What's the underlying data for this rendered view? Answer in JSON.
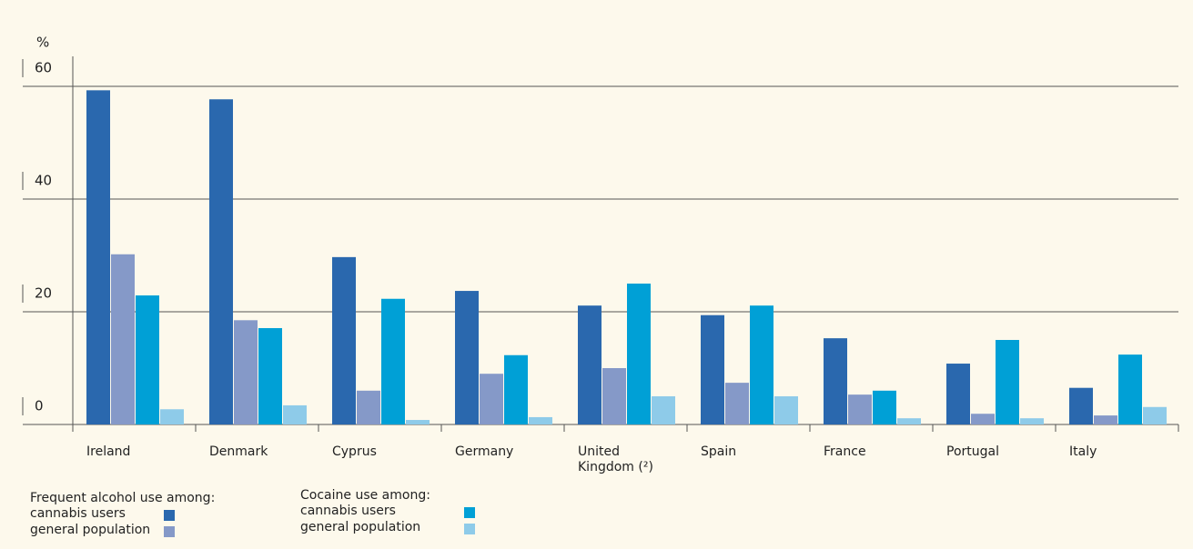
{
  "chart_data": {
    "type": "bar",
    "y_label": "%",
    "categories": [
      "Ireland",
      "Denmark",
      "Cyprus",
      "Germany",
      "United Kingdom (²)",
      "Spain",
      "France",
      "Portugal",
      "Italy"
    ],
    "legend_titles": [
      "Frequent alcohol use among:",
      "Cocaine use among:"
    ],
    "series": [
      {
        "name": "cannabis users",
        "color": "#2a68ae",
        "values": [
          59.3,
          57.7,
          29.7,
          23.7,
          21.1,
          19.4,
          15.3,
          10.8,
          6.5
        ]
      },
      {
        "name": "general population",
        "color": "#8599c8",
        "values": [
          30.2,
          18.5,
          6.0,
          9.0,
          10.0,
          7.4,
          5.3,
          1.9,
          1.6
        ]
      },
      {
        "name": "cannabis users",
        "color": "#00a0d6",
        "values": [
          22.9,
          17.1,
          22.3,
          12.3,
          25.0,
          21.1,
          6.0,
          15.0,
          12.4
        ]
      },
      {
        "name": "general population",
        "color": "#8ecbe9",
        "values": [
          2.7,
          3.4,
          0.8,
          1.3,
          5.0,
          5.0,
          1.1,
          1.1,
          3.1
        ]
      }
    ],
    "ylim": [
      0,
      60
    ],
    "yticks": [
      0,
      20,
      40,
      60
    ],
    "grid": true
  }
}
